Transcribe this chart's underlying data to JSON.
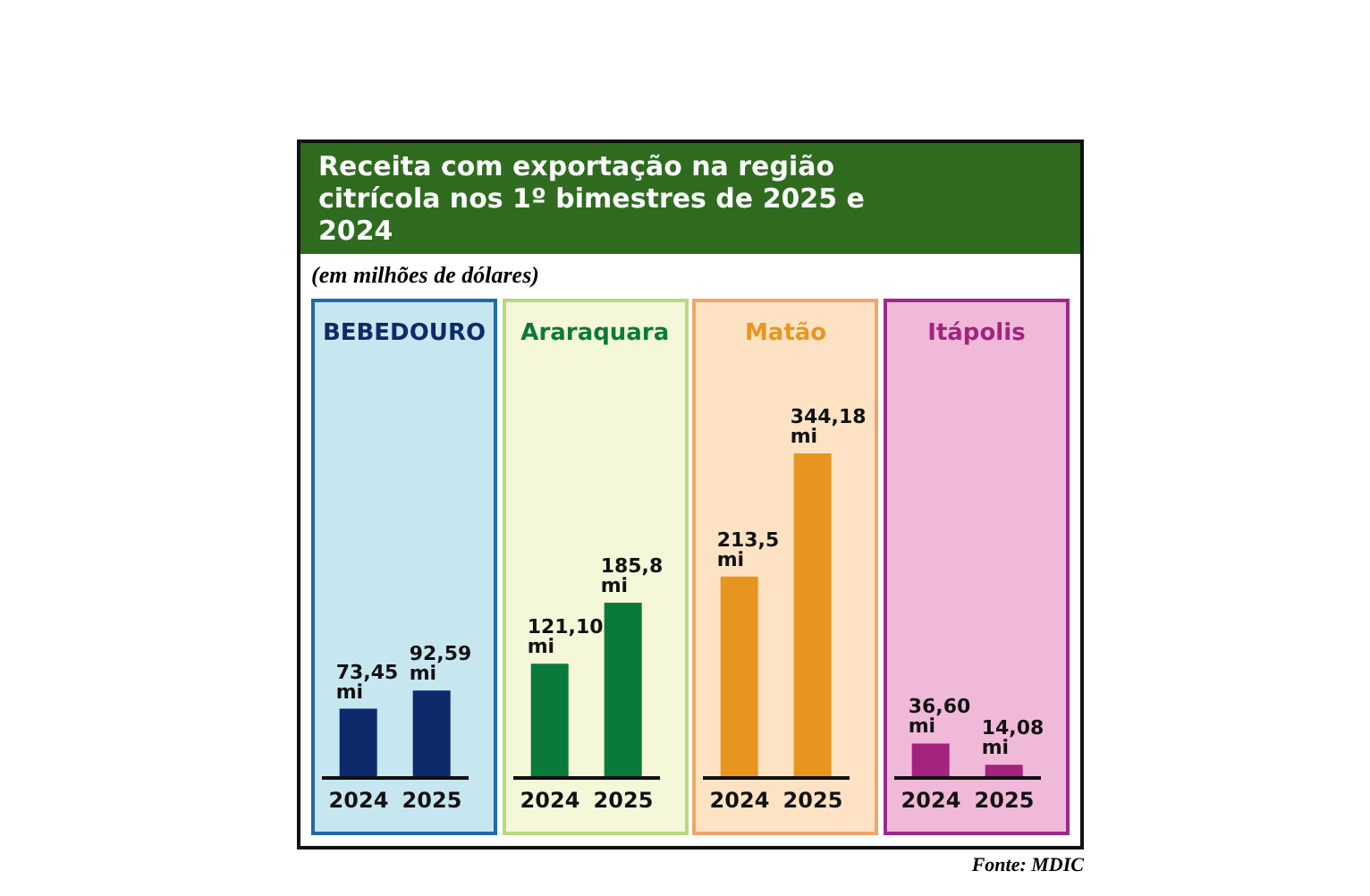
{
  "chart_data": [
    {
      "type": "other",
      "title": "Receita com exportação na região citrícola nos 1º bimestres de 2025 e 2024",
      "subtitle": "(em milhões de dólares)",
      "annotations": [
        "Fonte: MDIC"
      ]
    },
    {
      "type": "bar",
      "title": "BEBEDOURO",
      "categories": [
        "2024",
        "2025"
      ],
      "values": [
        73.45,
        92.59
      ],
      "value_labels": [
        "73,45 mi",
        "92,59 mi"
      ],
      "colors": [
        "#0d2a6b",
        "#0d2a6b"
      ]
    },
    {
      "type": "bar",
      "title": "Araraquara",
      "categories": [
        "2024",
        "2025"
      ],
      "values": [
        121.1,
        185.8
      ],
      "value_labels": [
        "121,10 mi",
        "185,8 mi"
      ],
      "colors": [
        "#0a7a3c",
        "#0a7a3c"
      ]
    },
    {
      "type": "bar",
      "title": "Matão",
      "categories": [
        "2024",
        "2025"
      ],
      "values": [
        213.5,
        344.18
      ],
      "value_labels": [
        "213,5 mi",
        "344,18 mi"
      ],
      "colors": [
        "#e8951f",
        "#e8951f"
      ]
    },
    {
      "type": "bar",
      "title": "Itápolis",
      "categories": [
        "2024",
        "2025"
      ],
      "values": [
        36.6,
        14.08
      ],
      "value_labels": [
        "36,60 mi",
        "14,08 mi"
      ],
      "colors": [
        "#a3237f",
        "#a3237f"
      ]
    }
  ]
}
